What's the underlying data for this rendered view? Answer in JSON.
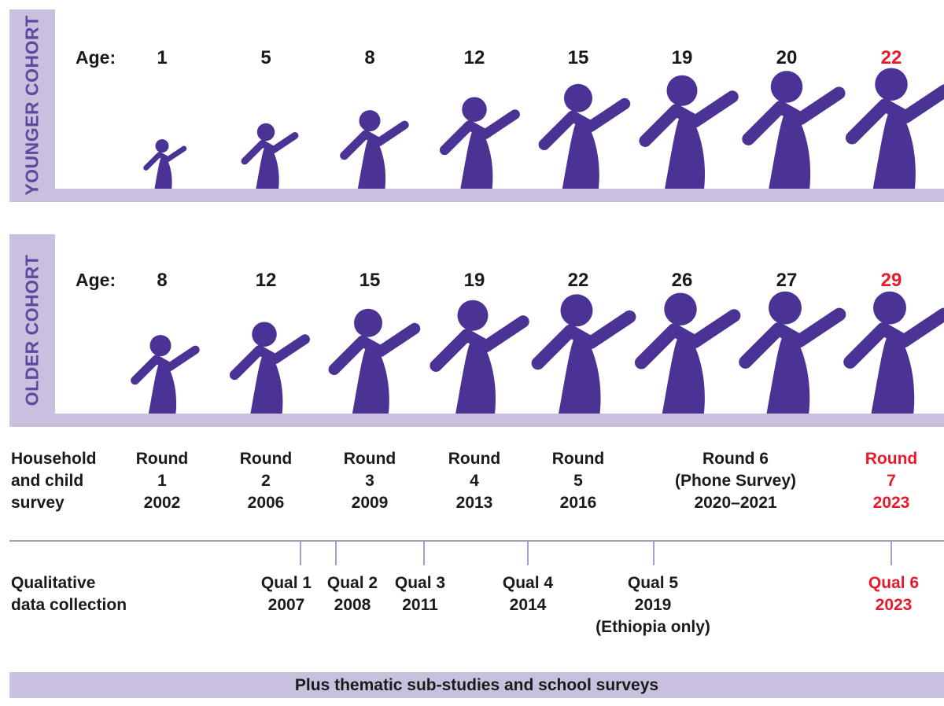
{
  "colors": {
    "figure": "#4a3394",
    "band": "#c9c0de",
    "highlight": "#e8192c",
    "text": "#1a1a1a"
  },
  "younger_cohort": {
    "label": "YOUNGER COHORT",
    "age_label": "Age:",
    "ages": [
      "1",
      "5",
      "8",
      "12",
      "15",
      "19",
      "20",
      "22"
    ],
    "figure_icon": "child-figure-icon"
  },
  "older_cohort": {
    "label": "OLDER COHORT",
    "age_label": "Age:",
    "ages": [
      "8",
      "12",
      "15",
      "19",
      "22",
      "26",
      "27",
      "29"
    ],
    "figure_icon": "child-figure-icon"
  },
  "survey": {
    "label_lines": [
      "Household",
      "and child",
      "survey"
    ],
    "rounds": [
      {
        "lines": [
          "Round",
          "1",
          "2002"
        ]
      },
      {
        "lines": [
          "Round",
          "2",
          "2006"
        ]
      },
      {
        "lines": [
          "Round",
          "3",
          "2009"
        ]
      },
      {
        "lines": [
          "Round",
          "4",
          "2013"
        ]
      },
      {
        "lines": [
          "Round",
          "5",
          "2016"
        ]
      },
      {
        "lines": [
          "Round 6",
          "(Phone Survey)",
          "2020–2021"
        ]
      },
      {
        "lines": [
          "Round",
          "7",
          "2023"
        ]
      }
    ]
  },
  "qualitative": {
    "label_lines": [
      "Qualitative",
      "data collection"
    ],
    "items": [
      {
        "lines": [
          "Qual 1",
          "2007"
        ]
      },
      {
        "lines": [
          "Qual 2",
          "2008"
        ]
      },
      {
        "lines": [
          "Qual 3",
          "2011"
        ]
      },
      {
        "lines": [
          "Qual 4",
          "2014"
        ]
      },
      {
        "lines": [
          "Qual 5",
          "2019",
          "(Ethiopia only)"
        ]
      },
      {
        "lines": [
          "Qual 6",
          "2023"
        ]
      }
    ]
  },
  "footer": {
    "text": "Plus thematic sub-studies and school surveys"
  }
}
